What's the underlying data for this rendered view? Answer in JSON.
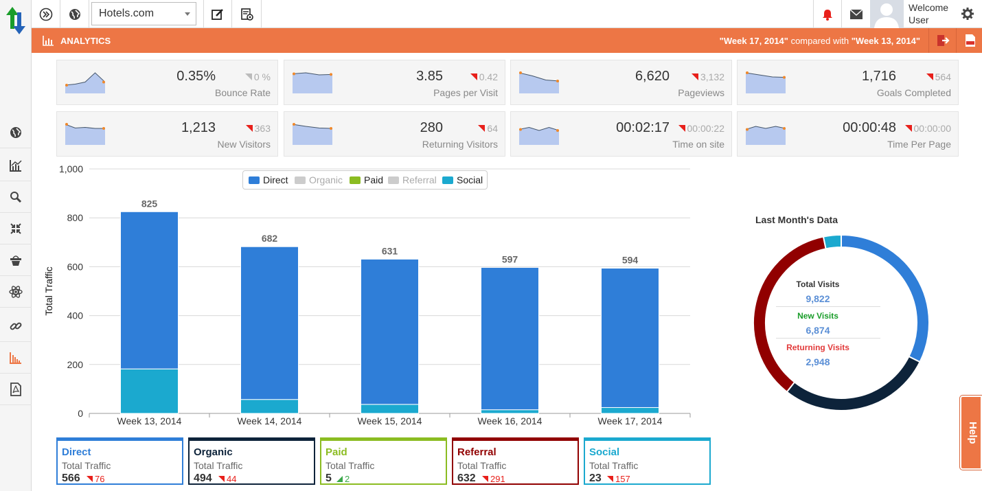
{
  "topbar": {
    "site": "Hotels.com",
    "welcome": "Welcome",
    "user": "User"
  },
  "analyticsbar": {
    "title": "ANALYTICS",
    "week_a": "\"Week 17, 2014\"",
    "compared_with": " compared with ",
    "week_b": "\"Week 13, 2014\""
  },
  "kpis": [
    {
      "value": "0.35%",
      "change": "0 %",
      "label": "Bounce Rate",
      "dir": "neutral",
      "spark": [
        0.4,
        0.45,
        0.55,
        1.0,
        0.55
      ]
    },
    {
      "value": "3.85",
      "change": "0.42",
      "label": "Pages per Visit",
      "dir": "down",
      "spark": [
        0.95,
        1.0,
        0.9,
        0.92
      ]
    },
    {
      "value": "6,620",
      "change": "3,132",
      "label": "Pageviews",
      "dir": "down",
      "spark": [
        1.0,
        0.85,
        0.65,
        0.6
      ]
    },
    {
      "value": "1,716",
      "change": "564",
      "label": "Goals Completed",
      "dir": "down",
      "spark": [
        1.0,
        0.9,
        0.8,
        0.78
      ]
    },
    {
      "value": "1,213",
      "change": "363",
      "label": "New Visitors",
      "dir": "down",
      "spark": [
        1.0,
        0.82,
        0.85,
        0.8,
        0.8
      ]
    },
    {
      "value": "280",
      "change": "64",
      "label": "Returning Visitors",
      "dir": "down",
      "spark": [
        1.0,
        0.9,
        0.82,
        0.8
      ]
    },
    {
      "value": "00:02:17",
      "change": "00:00:22",
      "label": "Time on site",
      "dir": "down",
      "spark": [
        0.75,
        0.85,
        0.7,
        0.85,
        0.7
      ]
    },
    {
      "value": "00:00:48",
      "change": "00:00:00",
      "label": "Time Per Page",
      "dir": "down",
      "spark": [
        0.75,
        0.9,
        0.8,
        0.9,
        0.8
      ]
    }
  ],
  "chart_data": [
    {
      "type": "bar",
      "stacked": true,
      "ylabel": "Total Traffic",
      "ylim": [
        0,
        1000
      ],
      "yticks": [
        0,
        200,
        400,
        600,
        800,
        1000
      ],
      "ytick_labels": [
        "0",
        "200",
        "400",
        "600",
        "800",
        "1,000"
      ],
      "categories": [
        "Week 13, 2014",
        "Week 14, 2014",
        "Week 15, 2014",
        "Week 16, 2014",
        "Week 17, 2014"
      ],
      "totals": [
        825,
        682,
        631,
        597,
        594
      ],
      "total_labels": [
        "825",
        "682",
        "631",
        "597",
        "594"
      ],
      "series": [
        {
          "name": "Social",
          "color": "#1ba9cf",
          "values": [
            182,
            57,
            37,
            15,
            24
          ]
        },
        {
          "name": "Direct",
          "color": "#2f7ed8",
          "values": [
            643,
            625,
            594,
            582,
            570
          ]
        }
      ],
      "legend": [
        {
          "name": "Direct",
          "color": "#2f7ed8",
          "active": true
        },
        {
          "name": "Organic",
          "color": "#cccccc",
          "active": false
        },
        {
          "name": "Paid",
          "color": "#8bbc21",
          "active": true
        },
        {
          "name": "Referral",
          "color": "#cccccc",
          "active": false
        },
        {
          "name": "Social",
          "color": "#1ba9cf",
          "active": true
        }
      ],
      "legend_position": "top"
    },
    {
      "type": "pie",
      "donut": true,
      "title": "Last Month's Data",
      "slices": [
        {
          "name": "Direct",
          "color": "#2f7ed8",
          "value": 566
        },
        {
          "name": "Organic",
          "color": "#0d233a",
          "value": 494
        },
        {
          "name": "Referral",
          "color": "#910000",
          "value": 632
        },
        {
          "name": "Social",
          "color": "#1ba9cf",
          "value": 57
        }
      ],
      "center": [
        {
          "label": "Total Visits",
          "value": "9,822",
          "color": "#333333"
        },
        {
          "label": "New Visits",
          "value": "6,874",
          "color": "#1a9d2a"
        },
        {
          "label": "Returning Visits",
          "value": "2,948",
          "color": "#e23a3a"
        }
      ]
    }
  ],
  "sources": [
    {
      "name": "Direct",
      "color": "#2f7ed8",
      "sub": "Total Traffic",
      "value": "566",
      "change": "76",
      "dir": "down"
    },
    {
      "name": "Organic",
      "color": "#0d233a",
      "sub": "Total Traffic",
      "value": "494",
      "change": "44",
      "dir": "down"
    },
    {
      "name": "Paid",
      "color": "#8bbc21",
      "sub": "Total Traffic",
      "value": "5",
      "change": "2",
      "dir": "up"
    },
    {
      "name": "Referral",
      "color": "#910000",
      "sub": "Total Traffic",
      "value": "632",
      "change": "291",
      "dir": "down"
    },
    {
      "name": "Social",
      "color": "#1ba9cf",
      "sub": "Total Traffic",
      "value": "23",
      "change": "157",
      "dir": "down"
    }
  ],
  "help": "Help",
  "icons": {
    "logo": "up-down-arrows-icon",
    "sidebar": [
      "globe-icon",
      "line-chart-icon",
      "search-icon",
      "compress-icon",
      "basket-icon",
      "atom-icon",
      "link-icon",
      "bar-chart-icon",
      "pdf-icon"
    ]
  }
}
